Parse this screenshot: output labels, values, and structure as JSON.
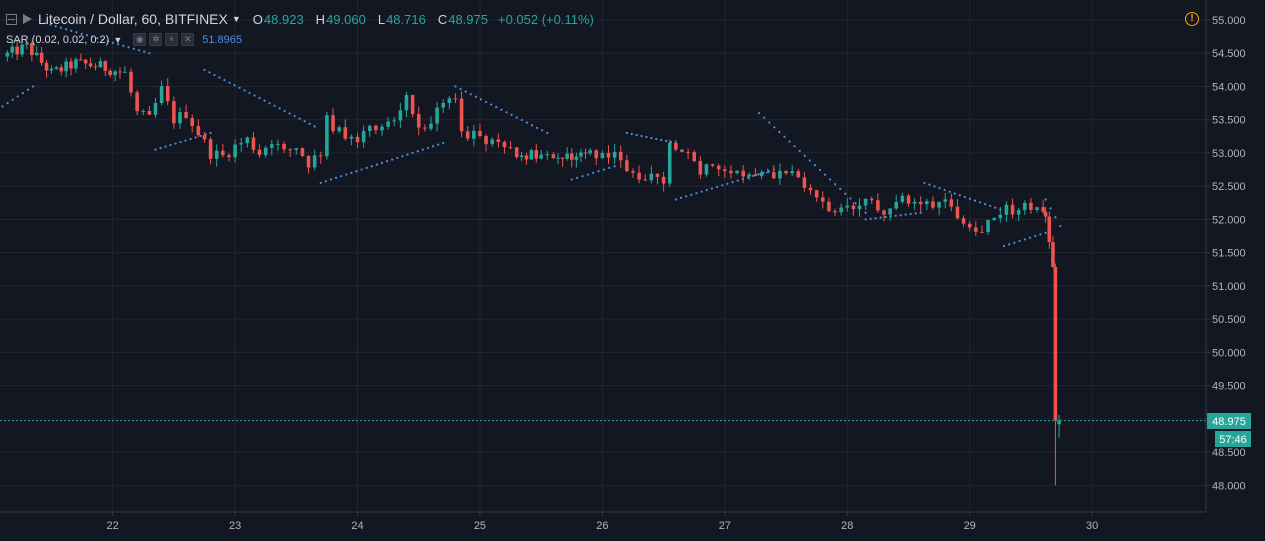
{
  "header": {
    "symbol": "Litecoin / Dollar, 60, BITFINEX",
    "open_label": "O",
    "open": "48.923",
    "high_label": "H",
    "high": "49.060",
    "low_label": "L",
    "low": "48.716",
    "close_label": "C",
    "close": "48.975",
    "change": "+0.052 (+0.11%)",
    "warning_icon": "!"
  },
  "indicator": {
    "label": "SAR (0.02, 0.02, 0.2)",
    "value": "51.8965",
    "icons": [
      "eye-icon",
      "settings-icon",
      "plus-icon",
      "close-icon"
    ]
  },
  "colors": {
    "background": "#131722",
    "grid": "#222632",
    "up": "#26a69a",
    "down": "#ef5350",
    "sar": "#4a90e2",
    "price_line": "#26a69a",
    "axis_text": "#b2b5be"
  },
  "price_tag": {
    "price": "48.975",
    "countdown": "57:46"
  },
  "chart_data": {
    "type": "candlestick",
    "x_axis": {
      "ticks": [
        "22",
        "23",
        "24",
        "25",
        "26",
        "27",
        "28",
        "29",
        "30"
      ],
      "tick_values": [
        22,
        23,
        24,
        25,
        26,
        27,
        28,
        29,
        30
      ],
      "range": [
        21.08,
        30.93
      ]
    },
    "y_axis": {
      "ticks": [
        "48.000",
        "48.500",
        "49.000",
        "49.500",
        "50.000",
        "50.500",
        "51.000",
        "51.500",
        "52.000",
        "52.500",
        "53.000",
        "53.500",
        "54.000",
        "54.500",
        "55.000"
      ],
      "range": [
        47.6,
        55.3
      ],
      "position": "right"
    },
    "grid": true,
    "last_price": 48.975,
    "candle_anchors": [
      [
        21.1,
        54.45
      ],
      [
        21.3,
        54.6
      ],
      [
        21.5,
        54.2
      ],
      [
        21.7,
        54.35
      ],
      [
        21.9,
        54.3
      ],
      [
        22.1,
        54.2
      ],
      [
        22.2,
        53.6
      ],
      [
        22.3,
        53.5
      ],
      [
        22.4,
        53.95
      ],
      [
        22.5,
        53.5
      ],
      [
        22.6,
        53.6
      ],
      [
        22.7,
        53.3
      ],
      [
        22.8,
        53.0
      ],
      [
        22.9,
        52.95
      ],
      [
        23.0,
        53.1
      ],
      [
        23.1,
        53.2
      ],
      [
        23.2,
        53.0
      ],
      [
        23.3,
        53.2
      ],
      [
        23.4,
        53.0
      ],
      [
        23.5,
        53.1
      ],
      [
        23.6,
        52.85
      ],
      [
        23.7,
        53.0
      ],
      [
        23.75,
        53.6
      ],
      [
        23.8,
        53.4
      ],
      [
        23.9,
        53.2
      ],
      [
        24.0,
        53.2
      ],
      [
        24.1,
        53.45
      ],
      [
        24.2,
        53.4
      ],
      [
        24.3,
        53.5
      ],
      [
        24.4,
        53.85
      ],
      [
        24.5,
        53.4
      ],
      [
        24.6,
        53.5
      ],
      [
        24.7,
        53.7
      ],
      [
        24.8,
        53.8
      ],
      [
        24.85,
        53.4
      ],
      [
        24.9,
        53.3
      ],
      [
        25.0,
        53.25
      ],
      [
        25.1,
        53.15
      ],
      [
        25.2,
        53.05
      ],
      [
        25.3,
        53.0
      ],
      [
        25.5,
        52.95
      ],
      [
        25.6,
        52.9
      ],
      [
        25.75,
        52.95
      ],
      [
        25.9,
        53.0
      ],
      [
        26.0,
        53.0
      ],
      [
        26.1,
        53.0
      ],
      [
        26.2,
        52.7
      ],
      [
        26.3,
        52.6
      ],
      [
        26.4,
        52.75
      ],
      [
        26.5,
        52.55
      ],
      [
        26.55,
        53.1
      ],
      [
        26.6,
        53.0
      ],
      [
        26.7,
        52.95
      ],
      [
        26.8,
        52.75
      ],
      [
        26.9,
        52.85
      ],
      [
        27.0,
        52.8
      ],
      [
        27.1,
        52.75
      ],
      [
        27.2,
        52.65
      ],
      [
        27.3,
        52.75
      ],
      [
        27.4,
        52.7
      ],
      [
        27.5,
        52.75
      ],
      [
        27.6,
        52.55
      ],
      [
        27.7,
        52.45
      ],
      [
        27.8,
        52.2
      ],
      [
        27.9,
        52.1
      ],
      [
        28.0,
        52.15
      ],
      [
        28.1,
        52.2
      ],
      [
        28.2,
        52.25
      ],
      [
        28.3,
        52.15
      ],
      [
        28.4,
        52.3
      ],
      [
        28.5,
        52.25
      ],
      [
        28.6,
        52.2
      ],
      [
        28.7,
        52.25
      ],
      [
        28.8,
        52.3
      ],
      [
        28.9,
        52.1
      ],
      [
        29.0,
        51.95
      ],
      [
        29.05,
        51.8
      ],
      [
        29.1,
        51.9
      ],
      [
        29.2,
        52.05
      ],
      [
        29.3,
        52.15
      ],
      [
        29.4,
        52.15
      ],
      [
        29.5,
        52.2
      ],
      [
        29.6,
        52.15
      ],
      [
        29.62,
        52.1
      ],
      [
        29.65,
        51.6
      ],
      [
        29.68,
        51.35
      ],
      [
        29.7,
        48.95
      ],
      [
        29.73,
        48.975
      ]
    ],
    "sar_segments": [
      {
        "from": [
          21.1,
          53.7
        ],
        "to": [
          21.35,
          54.0
        ]
      },
      {
        "from": [
          21.45,
          54.95
        ],
        "to": [
          22.3,
          54.5
        ]
      },
      {
        "from": [
          22.35,
          53.05
        ],
        "to": [
          22.8,
          53.3
        ]
      },
      {
        "from": [
          22.75,
          54.25
        ],
        "to": [
          23.65,
          53.4
        ]
      },
      {
        "from": [
          23.7,
          52.55
        ],
        "to": [
          24.7,
          53.15
        ]
      },
      {
        "from": [
          24.8,
          54.0
        ],
        "to": [
          25.55,
          53.3
        ]
      },
      {
        "from": [
          25.75,
          52.6
        ],
        "to": [
          26.1,
          52.8
        ]
      },
      {
        "from": [
          26.2,
          53.3
        ],
        "to": [
          26.6,
          53.15
        ]
      },
      {
        "from": [
          26.6,
          52.3
        ],
        "to": [
          27.4,
          52.75
        ]
      },
      {
        "from": [
          27.28,
          53.6
        ],
        "to": [
          28.15,
          52.1
        ]
      },
      {
        "from": [
          28.15,
          52.0
        ],
        "to": [
          28.6,
          52.1
        ]
      },
      {
        "from": [
          28.63,
          52.55
        ],
        "to": [
          29.25,
          52.15
        ]
      },
      {
        "from": [
          29.28,
          51.6
        ],
        "to": [
          29.62,
          51.8
        ]
      },
      {
        "from": [
          29.62,
          52.3
        ],
        "to": [
          29.74,
          51.9
        ]
      }
    ]
  }
}
